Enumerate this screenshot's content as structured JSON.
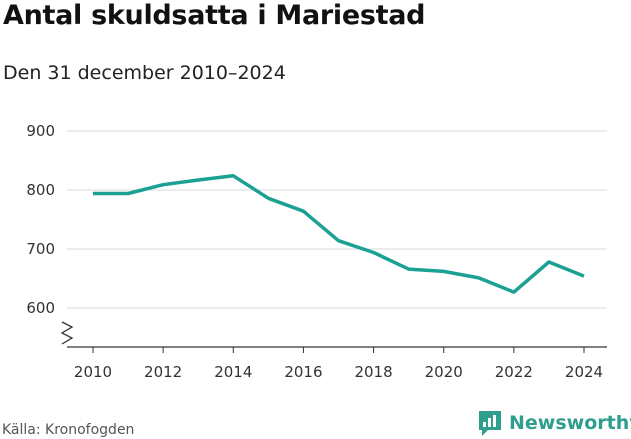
{
  "chart_data": {
    "type": "line",
    "title": "Antal skuldsatta i Mariestad",
    "subtitle": "Den 31 december 2010–2024",
    "xlabel": "",
    "ylabel": "",
    "x": [
      2010,
      2011,
      2012,
      2013,
      2014,
      2015,
      2016,
      2017,
      2018,
      2019,
      2020,
      2021,
      2022,
      2023,
      2024
    ],
    "series": [
      {
        "name": "Antal skuldsatta",
        "color": "#1aa193",
        "values": [
          794,
          794,
          809,
          817,
          824,
          786,
          764,
          714,
          694,
          666,
          662,
          651,
          627,
          678,
          654
        ]
      }
    ],
    "ylim": [
      540,
      900
    ],
    "yticks": [
      600,
      700,
      800,
      900
    ],
    "xticks": [
      2010,
      2012,
      2014,
      2016,
      2018,
      2020,
      2022,
      2024
    ],
    "grid": true,
    "axis_break": true
  },
  "footer": {
    "source": "Källa: Kronofogden",
    "brand": "Newsworthy",
    "brand_color": "#2f9e8f"
  }
}
